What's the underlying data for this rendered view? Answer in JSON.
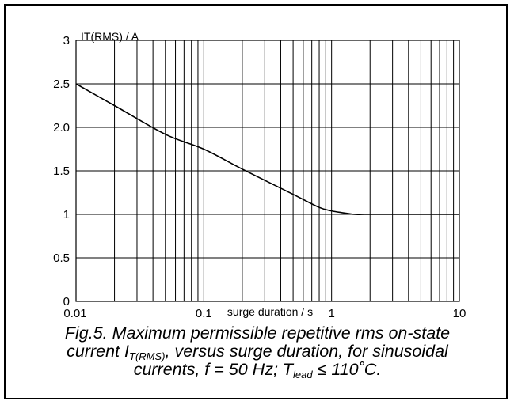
{
  "chart_data": {
    "type": "line",
    "x_scale": "log",
    "xlim": [
      0.01,
      10
    ],
    "ylim": [
      0,
      3
    ],
    "xlabel": "surge duration / s",
    "ylabel": "IT(RMS) / A",
    "x_ticks": [
      "0.01",
      "0.1",
      "1",
      "10"
    ],
    "y_ticks": [
      "0",
      "0.5",
      "1",
      "1.5",
      "2.0",
      "2.5",
      "3"
    ],
    "grid": true,
    "series": [
      {
        "x": [
          0.01,
          0.02,
          0.05,
          0.1,
          0.2,
          0.5,
          0.8,
          1.0,
          1.2,
          1.5,
          1.8,
          2,
          5,
          10
        ],
        "y": [
          2.5,
          2.25,
          1.92,
          1.75,
          1.52,
          1.23,
          1.08,
          1.04,
          1.02,
          1.0,
          1.0,
          1.0,
          1.0,
          1.0
        ]
      }
    ],
    "caption": {
      "line1": "Fig.5.   Maximum permissible repetitive rms on-state",
      "line2_pre": "current I",
      "line2_sub": "T(RMS)",
      "line2_post": ", versus surge duration, for sinusoidal",
      "line3_pre": "currents, f = 50 Hz; T",
      "line3_sub": "lead",
      "line3_post": " ≤ 110˚C."
    }
  }
}
